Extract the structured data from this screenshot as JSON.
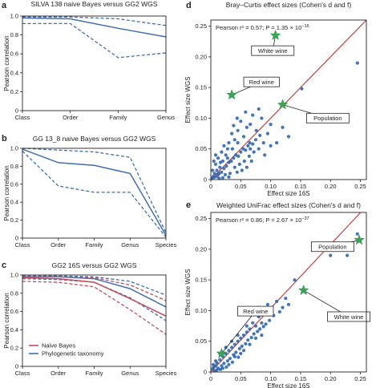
{
  "colors": {
    "blue": "#3f6fb0",
    "red": "#c44a5a",
    "fit": "#c8413f",
    "star": "#3aa655",
    "point": "#2f66b3"
  },
  "chart_data": [
    {
      "id": "a",
      "type": "line",
      "letter": "a",
      "title": "SILVA 138 naive Bayes versus GG2 WGS",
      "xlabel": "",
      "ylabel": "Pearson correlation",
      "categories": [
        "Class",
        "Order",
        "Family",
        "Genus"
      ],
      "ylim": [
        0,
        1.0
      ],
      "yticks": [
        "0",
        "0.2",
        "0.4",
        "0.6",
        "0.8",
        "1.0"
      ],
      "series": [
        {
          "color": "blue",
          "style": "solid",
          "values": [
            0.98,
            0.97,
            0.87,
            0.78
          ]
        },
        {
          "color": "blue",
          "style": "dashed",
          "values": [
            0.99,
            0.99,
            0.97,
            0.9
          ]
        },
        {
          "color": "blue",
          "style": "dashed",
          "values": [
            0.92,
            0.92,
            0.56,
            0.61
          ]
        }
      ]
    },
    {
      "id": "b",
      "type": "line",
      "letter": "b",
      "title": "GG 13_8 naive Bayes versus GG2 WGS",
      "xlabel": "",
      "ylabel": "Pearson correlation",
      "categories": [
        "Class",
        "Order",
        "Family",
        "Genus",
        "Species"
      ],
      "ylim": [
        0,
        1.0
      ],
      "yticks": [
        "0",
        "0.2",
        "0.4",
        "0.6",
        "0.8",
        "1.0"
      ],
      "series": [
        {
          "color": "blue",
          "style": "solid",
          "values": [
            0.99,
            0.84,
            0.81,
            0.72,
            0.03
          ]
        },
        {
          "color": "blue",
          "style": "dashed",
          "values": [
            1.0,
            0.98,
            0.96,
            0.9,
            0.06
          ]
        },
        {
          "color": "blue",
          "style": "dashed",
          "values": [
            0.97,
            0.58,
            0.51,
            0.51,
            0.01
          ]
        }
      ]
    },
    {
      "id": "c",
      "type": "line",
      "letter": "c",
      "title": "GG2 16S versus GG2 WGS",
      "xlabel": "",
      "ylabel": "Pearson correlation",
      "categories": [
        "Class",
        "Order",
        "Family",
        "Genus",
        "Species"
      ],
      "ylim": [
        0,
        1.0
      ],
      "yticks": [
        "0",
        "0.2",
        "0.4",
        "0.6",
        "0.8",
        "1.0"
      ],
      "legend": {
        "position": "bottom-left",
        "entries": [
          {
            "label": "Naive Bayes",
            "color": "red"
          },
          {
            "label": "Phylogenetic taxonomy",
            "color": "blue"
          }
        ]
      },
      "series": [
        {
          "color": "blue",
          "style": "solid",
          "values": [
            0.98,
            0.98,
            0.96,
            0.85,
            0.65
          ]
        },
        {
          "color": "blue",
          "style": "dashed",
          "values": [
            0.99,
            0.99,
            0.98,
            0.93,
            0.78
          ]
        },
        {
          "color": "blue",
          "style": "dashed",
          "values": [
            0.96,
            0.95,
            0.92,
            0.75,
            0.5
          ]
        },
        {
          "color": "red",
          "style": "solid",
          "values": [
            0.97,
            0.96,
            0.92,
            0.74,
            0.55
          ]
        },
        {
          "color": "red",
          "style": "dashed",
          "values": [
            0.98,
            0.98,
            0.97,
            0.89,
            0.72
          ]
        },
        {
          "color": "red",
          "style": "dashed",
          "values": [
            0.93,
            0.92,
            0.87,
            0.62,
            0.35
          ]
        }
      ]
    },
    {
      "id": "d",
      "type": "scatter",
      "letter": "d",
      "title": "Bray–Curtis effect sizes (Cohen's d and f)",
      "xlabel": "Effect size 16S",
      "ylabel": "Effect size WGS",
      "xlim": [
        0,
        0.26
      ],
      "ylim": [
        0,
        0.26
      ],
      "xticks": [
        0,
        0.05,
        0.1,
        0.15,
        0.2,
        0.25
      ],
      "yticks": [
        0,
        0.05,
        0.1,
        0.15,
        0.2,
        0.25
      ],
      "xtick_labels": [
        "0",
        "0.05",
        "0.10",
        "0.15",
        "0.20",
        "0.25"
      ],
      "ytick_labels": [
        "0",
        "0.05",
        "0.10",
        "0.15",
        "0.20",
        "0.25"
      ],
      "stat_prefix": "Pearson ",
      "stat_r2": "r² = 0.57; ",
      "stat_p": "P = 1.35 × 10",
      "stat_exp": "−16",
      "fit_line": [
        [
          0,
          0
        ],
        [
          0.26,
          0.26
        ]
      ],
      "highlights": [
        {
          "label": "White wine",
          "x": 0.108,
          "y": 0.235,
          "box": [
            0.068,
            0.218
          ]
        },
        {
          "label": "Red wine",
          "x": 0.035,
          "y": 0.138,
          "box": [
            0.055,
            0.167
          ]
        },
        {
          "label": "Population",
          "x": 0.12,
          "y": 0.122,
          "box": [
            0.16,
            0.108
          ]
        }
      ],
      "points": [
        [
          0.245,
          0.19
        ],
        [
          0.152,
          0.148
        ],
        [
          0.12,
          0.085
        ],
        [
          0.1,
          0.09
        ],
        [
          0.08,
          0.115
        ],
        [
          0.07,
          0.105
        ],
        [
          0.085,
          0.1
        ],
        [
          0.095,
          0.075
        ],
        [
          0.06,
          0.085
        ],
        [
          0.055,
          0.07
        ],
        [
          0.065,
          0.06
        ],
        [
          0.075,
          0.065
        ],
        [
          0.05,
          0.095
        ],
        [
          0.045,
          0.08
        ],
        [
          0.04,
          0.065
        ],
        [
          0.035,
          0.075
        ],
        [
          0.03,
          0.06
        ],
        [
          0.028,
          0.05
        ],
        [
          0.025,
          0.04
        ],
        [
          0.022,
          0.055
        ],
        [
          0.02,
          0.03
        ],
        [
          0.018,
          0.045
        ],
        [
          0.015,
          0.02
        ],
        [
          0.012,
          0.035
        ],
        [
          0.01,
          0.015
        ],
        [
          0.008,
          0.025
        ],
        [
          0.006,
          0.01
        ],
        [
          0.005,
          0.03
        ],
        [
          0.004,
          0.005
        ],
        [
          0.003,
          0.015
        ],
        [
          0.01,
          0.005
        ],
        [
          0.014,
          0.01
        ],
        [
          0.018,
          0.012
        ],
        [
          0.022,
          0.018
        ],
        [
          0.026,
          0.022
        ],
        [
          0.03,
          0.028
        ],
        [
          0.034,
          0.03
        ],
        [
          0.038,
          0.035
        ],
        [
          0.042,
          0.04
        ],
        [
          0.046,
          0.038
        ],
        [
          0.05,
          0.045
        ],
        [
          0.054,
          0.05
        ],
        [
          0.058,
          0.048
        ],
        [
          0.062,
          0.055
        ],
        [
          0.066,
          0.05
        ],
        [
          0.07,
          0.058
        ],
        [
          0.045,
          0.06
        ],
        [
          0.036,
          0.05
        ],
        [
          0.028,
          0.035
        ],
        [
          0.016,
          0.028
        ],
        [
          0.012,
          0.008
        ],
        [
          0.02,
          0.003
        ],
        [
          0.032,
          0.01
        ],
        [
          0.04,
          0.02
        ],
        [
          0.048,
          0.025
        ],
        [
          0.056,
          0.03
        ],
        [
          0.064,
          0.038
        ],
        [
          0.072,
          0.045
        ],
        [
          0.08,
          0.05
        ],
        [
          0.088,
          0.06
        ],
        [
          0.024,
          0.008
        ],
        [
          0.008,
          0.04
        ],
        [
          0.06,
          0.02
        ],
        [
          0.052,
          0.015
        ],
        [
          0.068,
          0.03
        ],
        [
          0.11,
          0.06
        ],
        [
          0.13,
          0.07
        ],
        [
          0.09,
          0.04
        ],
        [
          0.1,
          0.055
        ],
        [
          0.076,
          0.08
        ],
        [
          0.044,
          0.1
        ],
        [
          0.058,
          0.11
        ],
        [
          0.066,
          0.09
        ],
        [
          0.082,
          0.072
        ],
        [
          0.038,
          0.088
        ],
        [
          0.002,
          0.002
        ],
        [
          0.006,
          0.004
        ],
        [
          0.014,
          0.002
        ],
        [
          0.03,
          0.004
        ],
        [
          0.044,
          0.012
        ]
      ]
    },
    {
      "id": "e",
      "type": "scatter",
      "letter": "e",
      "title": "Weighted UniFrac effect sizes (Cohen's d and f)",
      "xlabel": "Effect size 16S",
      "ylabel": "Effect size WGS",
      "xlim": [
        0,
        0.26
      ],
      "ylim": [
        0,
        0.26
      ],
      "xticks": [
        0,
        0.05,
        0.1,
        0.15,
        0.2,
        0.25
      ],
      "yticks": [
        0,
        0.05,
        0.1,
        0.15,
        0.2,
        0.25
      ],
      "xtick_labels": [
        "0",
        "0.05",
        "0.10",
        "0.15",
        "0.20",
        "0.25"
      ],
      "ytick_labels": [
        "0",
        "0.05",
        "0.10",
        "0.15",
        "0.20",
        "0.25"
      ],
      "stat_prefix": "Pearson ",
      "stat_r2": "r² = 0.86; ",
      "stat_p": "P = 2.67 × 10",
      "stat_exp": "−37",
      "fit_line": [
        [
          0,
          0
        ],
        [
          0.26,
          0.27
        ]
      ],
      "highlights": [
        {
          "label": "Population",
          "x": 0.248,
          "y": 0.215,
          "box": [
            0.168,
            0.212
          ]
        },
        {
          "label": "White wine",
          "x": 0.155,
          "y": 0.133,
          "box": [
            0.195,
            0.098
          ]
        },
        {
          "label": "Red wine",
          "x": 0.018,
          "y": 0.03,
          "box": [
            0.045,
            0.107
          ]
        }
      ],
      "points": [
        [
          0.245,
          0.225
        ],
        [
          0.228,
          0.19
        ],
        [
          0.2,
          0.19
        ],
        [
          0.18,
          0.2
        ],
        [
          0.17,
          0.205
        ],
        [
          0.14,
          0.15
        ],
        [
          0.125,
          0.12
        ],
        [
          0.11,
          0.115
        ],
        [
          0.1,
          0.1
        ],
        [
          0.09,
          0.095
        ],
        [
          0.085,
          0.08
        ],
        [
          0.08,
          0.09
        ],
        [
          0.075,
          0.075
        ],
        [
          0.07,
          0.08
        ],
        [
          0.065,
          0.07
        ],
        [
          0.06,
          0.065
        ],
        [
          0.055,
          0.06
        ],
        [
          0.05,
          0.055
        ],
        [
          0.045,
          0.05
        ],
        [
          0.04,
          0.045
        ],
        [
          0.035,
          0.04
        ],
        [
          0.03,
          0.035
        ],
        [
          0.025,
          0.03
        ],
        [
          0.02,
          0.025
        ],
        [
          0.015,
          0.02
        ],
        [
          0.01,
          0.015
        ],
        [
          0.008,
          0.01
        ],
        [
          0.005,
          0.008
        ],
        [
          0.003,
          0.005
        ],
        [
          0.012,
          0.006
        ],
        [
          0.018,
          0.01
        ],
        [
          0.022,
          0.014
        ],
        [
          0.028,
          0.018
        ],
        [
          0.032,
          0.022
        ],
        [
          0.038,
          0.028
        ],
        [
          0.042,
          0.032
        ],
        [
          0.048,
          0.038
        ],
        [
          0.052,
          0.042
        ],
        [
          0.058,
          0.046
        ],
        [
          0.062,
          0.052
        ],
        [
          0.068,
          0.056
        ],
        [
          0.072,
          0.062
        ],
        [
          0.078,
          0.066
        ],
        [
          0.082,
          0.07
        ],
        [
          0.088,
          0.074
        ],
        [
          0.092,
          0.078
        ],
        [
          0.098,
          0.084
        ],
        [
          0.105,
          0.092
        ],
        [
          0.06,
          0.075
        ],
        [
          0.045,
          0.06
        ],
        [
          0.035,
          0.05
        ],
        [
          0.025,
          0.04
        ],
        [
          0.015,
          0.03
        ],
        [
          0.07,
          0.095
        ],
        [
          0.08,
          0.105
        ],
        [
          0.115,
          0.098
        ],
        [
          0.12,
          0.105
        ],
        [
          0.13,
          0.11
        ],
        [
          0.095,
          0.11
        ],
        [
          0.05,
          0.03
        ],
        [
          0.04,
          0.025
        ],
        [
          0.03,
          0.012
        ],
        [
          0.02,
          0.006
        ],
        [
          0.01,
          0.003
        ],
        [
          0.055,
          0.035
        ],
        [
          0.065,
          0.045
        ],
        [
          0.075,
          0.055
        ],
        [
          0.085,
          0.06
        ],
        [
          0.008,
          0.018
        ],
        [
          0.004,
          0.012
        ],
        [
          0.016,
          0.004
        ],
        [
          0.026,
          0.008
        ],
        [
          0.036,
          0.016
        ],
        [
          0.046,
          0.024
        ],
        [
          0.006,
          0.002
        ]
      ]
    }
  ]
}
